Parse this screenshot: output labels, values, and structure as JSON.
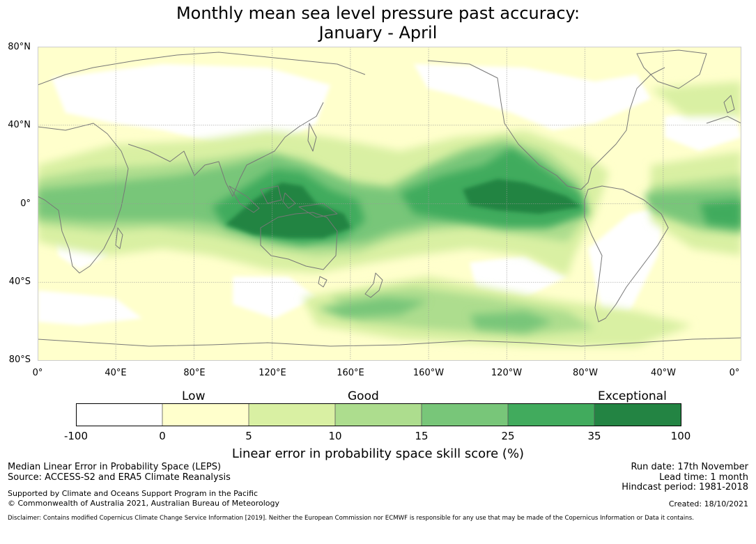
{
  "title": {
    "line1": "Monthly mean sea level pressure past accuracy:",
    "line2": "January - April"
  },
  "map": {
    "lat_labels": [
      "80°N",
      "40°N",
      "0°",
      "40°S",
      "80°S"
    ],
    "lon_labels": [
      "0°",
      "40°E",
      "80°E",
      "120°E",
      "160°E",
      "160°W",
      "120°W",
      "80°W",
      "40°W",
      "0°"
    ]
  },
  "colorbar": {
    "quality_labels": {
      "low": "Low",
      "good": "Good",
      "exceptional": "Exceptional"
    },
    "ticks": [
      "-100",
      "0",
      "5",
      "10",
      "15",
      "25",
      "35",
      "100"
    ],
    "colors": [
      "#ffffff",
      "#ffffcc",
      "#d9f0a3",
      "#addd8e",
      "#78c679",
      "#41ab5d",
      "#238443"
    ],
    "title": "Linear error in probability space skill score (%)"
  },
  "footer": {
    "left_line1": "Median Linear Error in Probability Space (LEPS)",
    "left_line2": "Source: ACCESS-S2 and ERA5 Climate Reanalysis",
    "left_line3": "Supported by Climate and Oceans Support Program in the Pacific",
    "left_line4": "© Commonwealth of Australia 2021, Australian Bureau of Meteorology",
    "right_line1": "Run date: 17th November",
    "right_line2": "Lead time: 1 month",
    "right_line3": "Hindcast period: 1981-2018",
    "right_line4": "Created: 18/10/2021",
    "disclaimer": "Disclaimer: Contains modified Copernicus Climate Change Service Information [2019]. Neither the European Commission nor ECMWF is responsible for any use that may be made of the Copernicus Information or Data it contains."
  }
}
